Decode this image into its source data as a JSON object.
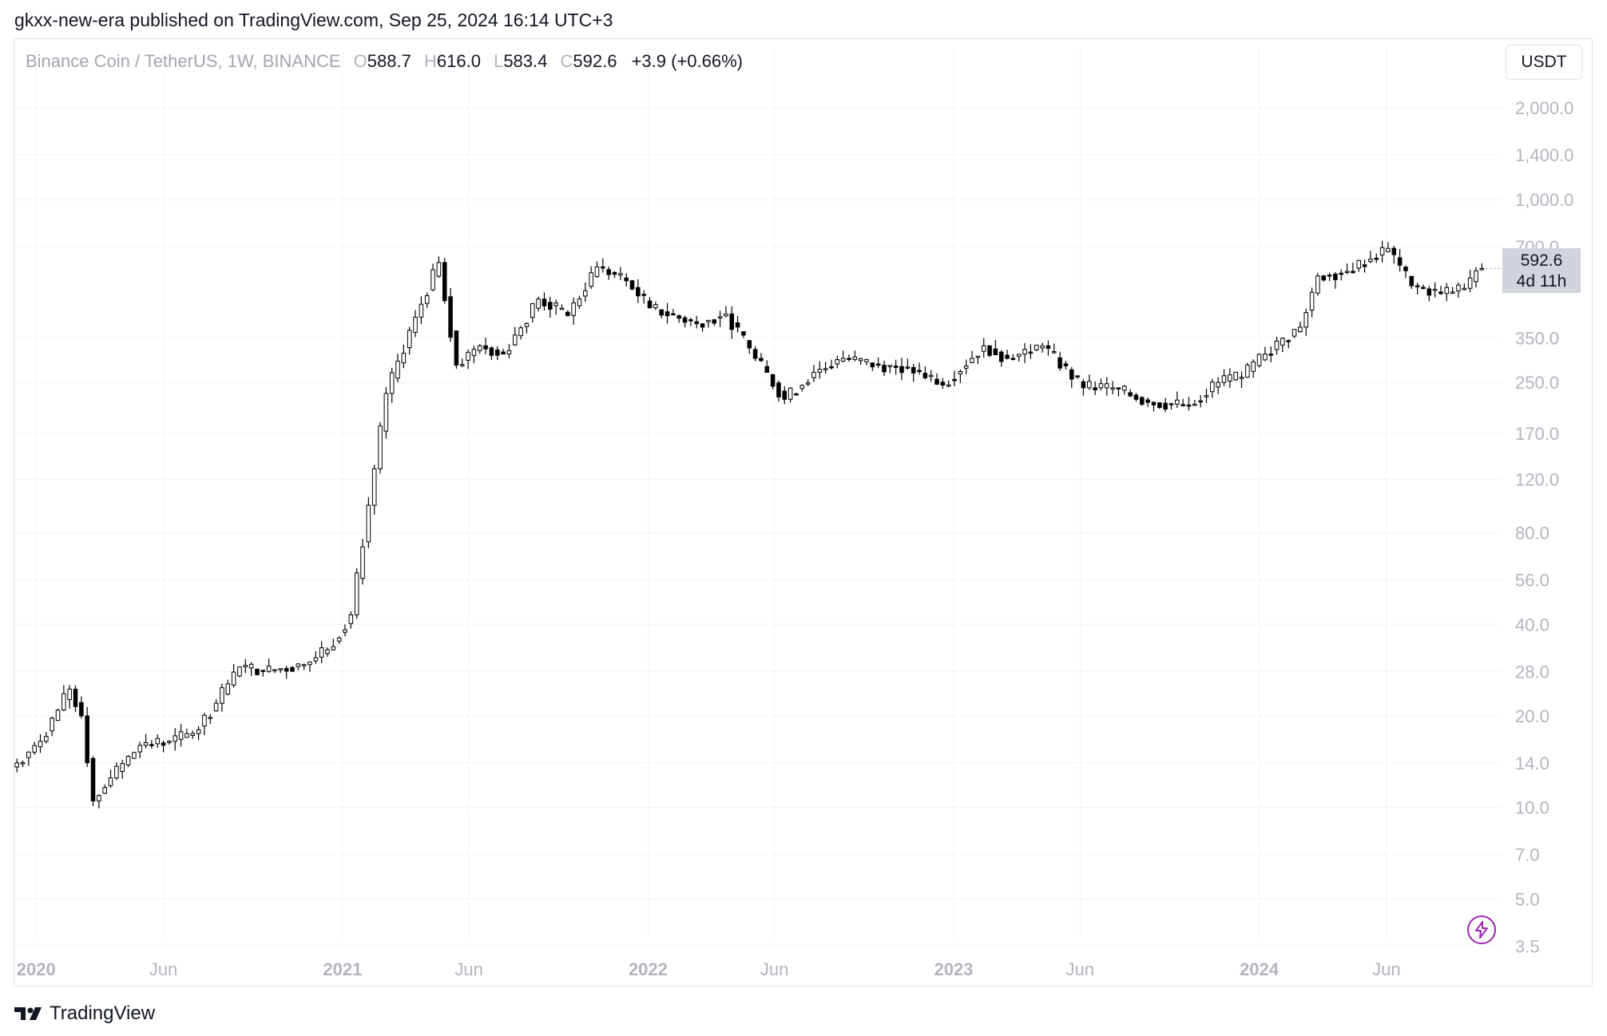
{
  "header": {
    "published_line": "gkxx-new-era published on TradingView.com, Sep 25, 2024 16:14 UTC+3"
  },
  "legend": {
    "symbol": "Binance Coin / TetherUS, 1W, BINANCE",
    "o_label": "O",
    "o_value": "588.7",
    "h_label": "H",
    "h_value": "616.0",
    "l_label": "L",
    "l_value": "583.4",
    "c_label": "C",
    "c_value": "592.6",
    "change": "+3.9 (+0.66%)"
  },
  "currency_button": "USDT",
  "price_tag": {
    "price": "592.6",
    "countdown": "4d 11h"
  },
  "footer": {
    "brand": "TradingView"
  },
  "colors": {
    "up_body": "#ffffff",
    "down_body": "#000000",
    "candle_border": "#000000",
    "grid": "#f0f3fa",
    "axis_text": "#b2b5be",
    "accent_purple": "#9c27b0"
  },
  "icons": {
    "logo": "tradingview-logo-icon",
    "replay": "lightning-bolt-icon"
  },
  "chart_data": {
    "type": "candlestick",
    "title": "Binance Coin / TetherUS, 1W, BINANCE",
    "y_scale": "log",
    "ylim": [
      3.3,
      2400
    ],
    "y_ticks": [
      "2,000.0",
      "1,400.0",
      "1,000.0",
      "700.0",
      "350.0",
      "250.0",
      "170.0",
      "120.0",
      "80.0",
      "56.0",
      "40.0",
      "28.0",
      "20.0",
      "14.0",
      "10.0",
      "7.0",
      "5.0",
      "3.5"
    ],
    "x_ticks": [
      {
        "label": "2020",
        "date": "2020-01-01",
        "bold": true
      },
      {
        "label": "Jun",
        "date": "2020-06-01",
        "bold": false
      },
      {
        "label": "2021",
        "date": "2021-01-01",
        "bold": true
      },
      {
        "label": "Jun",
        "date": "2021-06-01",
        "bold": false
      },
      {
        "label": "2022",
        "date": "2022-01-01",
        "bold": true
      },
      {
        "label": "Jun",
        "date": "2022-06-01",
        "bold": false
      },
      {
        "label": "2023",
        "date": "2023-01-01",
        "bold": true
      },
      {
        "label": "Jun",
        "date": "2023-06-01",
        "bold": false
      },
      {
        "label": "2024",
        "date": "2024-01-01",
        "bold": true
      },
      {
        "label": "Jun",
        "date": "2024-06-01",
        "bold": false
      }
    ],
    "x_range": [
      "2019-12-06",
      "2024-10-07"
    ],
    "grid": true,
    "last_price": 592.6,
    "weekly_closes": [
      {
        "date": "2019-12-09",
        "close": 14.0
      },
      {
        "date": "2020-01-06",
        "close": 16.5
      },
      {
        "date": "2020-02-10",
        "close": 24.5
      },
      {
        "date": "2020-02-24",
        "close": 20.0
      },
      {
        "date": "2020-03-09",
        "close": 10.5
      },
      {
        "date": "2020-03-30",
        "close": 12.5
      },
      {
        "date": "2020-05-04",
        "close": 16.0
      },
      {
        "date": "2020-06-08",
        "close": 16.5
      },
      {
        "date": "2020-07-06",
        "close": 17.5
      },
      {
        "date": "2020-08-03",
        "close": 22.0
      },
      {
        "date": "2020-08-31",
        "close": 29.0
      },
      {
        "date": "2020-09-28",
        "close": 28.0
      },
      {
        "date": "2020-11-16",
        "close": 29.5
      },
      {
        "date": "2020-12-14",
        "close": 33.0
      },
      {
        "date": "2021-01-11",
        "close": 43.0
      },
      {
        "date": "2021-02-08",
        "close": 130.0
      },
      {
        "date": "2021-02-22",
        "close": 230.0
      },
      {
        "date": "2021-03-29",
        "close": 410.0
      },
      {
        "date": "2021-04-26",
        "close": 620.0
      },
      {
        "date": "2021-05-17",
        "close": 285.0
      },
      {
        "date": "2021-06-14",
        "close": 330.0
      },
      {
        "date": "2021-07-12",
        "close": 310.0
      },
      {
        "date": "2021-08-23",
        "close": 470.0
      },
      {
        "date": "2021-09-27",
        "close": 415.0
      },
      {
        "date": "2021-11-01",
        "close": 600.0
      },
      {
        "date": "2021-12-06",
        "close": 540.0
      },
      {
        "date": "2022-01-03",
        "close": 440.0
      },
      {
        "date": "2022-02-28",
        "close": 390.0
      },
      {
        "date": "2022-04-04",
        "close": 420.0
      },
      {
        "date": "2022-05-09",
        "close": 300.0
      },
      {
        "date": "2022-06-13",
        "close": 220.0
      },
      {
        "date": "2022-07-18",
        "close": 270.0
      },
      {
        "date": "2022-08-22",
        "close": 300.0
      },
      {
        "date": "2022-10-03",
        "close": 285.0
      },
      {
        "date": "2022-11-07",
        "close": 280.0
      },
      {
        "date": "2022-12-19",
        "close": 245.0
      },
      {
        "date": "2023-02-06",
        "close": 330.0
      },
      {
        "date": "2023-03-06",
        "close": 300.0
      },
      {
        "date": "2023-04-17",
        "close": 330.0
      },
      {
        "date": "2023-06-05",
        "close": 240.0
      },
      {
        "date": "2023-07-10",
        "close": 240.0
      },
      {
        "date": "2023-08-21",
        "close": 215.0
      },
      {
        "date": "2023-10-09",
        "close": 210.0
      },
      {
        "date": "2023-11-13",
        "close": 250.0
      },
      {
        "date": "2023-12-11",
        "close": 260.0
      },
      {
        "date": "2024-01-08",
        "close": 310.0
      },
      {
        "date": "2024-02-19",
        "close": 380.0
      },
      {
        "date": "2024-03-11",
        "close": 560.0
      },
      {
        "date": "2024-04-15",
        "close": 580.0
      },
      {
        "date": "2024-06-03",
        "close": 690.0
      },
      {
        "date": "2024-07-01",
        "close": 520.0
      },
      {
        "date": "2024-08-05",
        "close": 490.0
      },
      {
        "date": "2024-09-02",
        "close": 510.0
      },
      {
        "date": "2024-09-23",
        "close": 592.6
      }
    ]
  }
}
